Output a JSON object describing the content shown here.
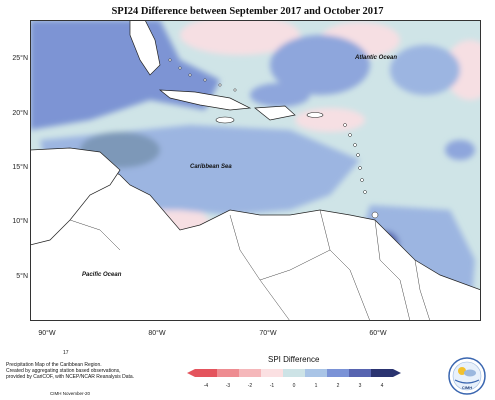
{
  "title": "SPI24 Difference between September 2017 and October 2017",
  "axes": {
    "y_ticks": [
      "25°N",
      "20°N",
      "15°N",
      "10°N",
      "5°N"
    ],
    "x_ticks": [
      "90°W",
      "80°W",
      "70°W",
      "60°W"
    ]
  },
  "labels": {
    "atlantic": "Atlantic Ocean",
    "caribbean": "Caribbean Sea",
    "pacific": "Pacific Ocean"
  },
  "legend": {
    "title": "SPI Difference",
    "ticks": [
      "-4",
      "-3",
      "-2",
      "-1",
      "0",
      "1",
      "2",
      "3",
      "4"
    ],
    "colors": [
      "#e4545d",
      "#ee8c91",
      "#f5b7ba",
      "#fbe0e2",
      "#cde3e6",
      "#a9c4e6",
      "#7a92d6",
      "#5764b0",
      "#2a3370"
    ]
  },
  "footer": {
    "page_number": "17",
    "line1": "Precipitation Map of the Caribbean Region.",
    "line2": "Created by aggregating station based observations,",
    "line3": "provided by CariCOF, with NCEP/NCAR Reanalysis Data.",
    "credit": "CIMH November-20"
  },
  "logo": {
    "text": "CIMH"
  }
}
